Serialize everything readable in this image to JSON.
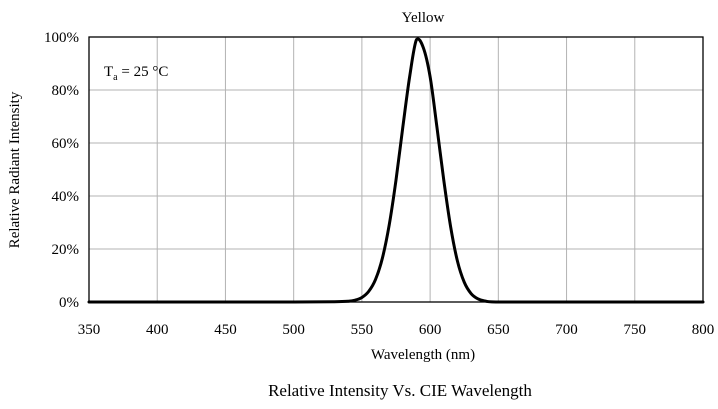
{
  "chart_data": {
    "type": "line",
    "title": "Yellow",
    "caption": "Relative Intensity Vs. CIE Wavelength",
    "xlabel": "Wavelength (nm)",
    "ylabel": "Relative Radiant Intensity",
    "annotation": {
      "base": "T",
      "subscript": "a",
      "rest": " = 25 °C"
    },
    "xlim": [
      350,
      800
    ],
    "ylim": [
      0,
      100
    ],
    "x_ticks": [
      350,
      400,
      450,
      500,
      550,
      600,
      650,
      700,
      750,
      800
    ],
    "x_tick_labels": [
      "350",
      "400",
      "450",
      "500",
      "550",
      "600",
      "650",
      "700",
      "750",
      "800"
    ],
    "y_ticks": [
      0,
      20,
      40,
      60,
      80,
      100
    ],
    "y_tick_labels": [
      "0%",
      "20%",
      "40%",
      "60%",
      "80%",
      "100%"
    ],
    "grid": true,
    "series": [
      {
        "x": [
          350,
          400,
          450,
          500,
          530,
          540,
          545,
          550,
          555,
          560,
          565,
          570,
          575,
          580,
          585,
          590,
          595,
          600,
          605,
          610,
          615,
          620,
          625,
          630,
          635,
          640,
          650,
          700,
          750,
          800
        ],
        "y": [
          0,
          0,
          0,
          0,
          0.1,
          0.3,
          0.7,
          1.7,
          4,
          8.5,
          16.5,
          29,
          46,
          66,
          85,
          99,
          96,
          85,
          66,
          46,
          28.5,
          15.5,
          7.5,
          3.2,
          1.2,
          0.4,
          0,
          0,
          0,
          0
        ],
        "color": "#000000"
      }
    ]
  }
}
